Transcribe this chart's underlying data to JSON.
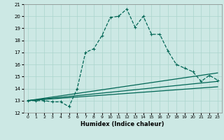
{
  "title": "",
  "xlabel": "Humidex (Indice chaleur)",
  "ylabel": "",
  "xlim": [
    -0.5,
    23.5
  ],
  "ylim": [
    12,
    21
  ],
  "yticks": [
    12,
    13,
    14,
    15,
    16,
    17,
    18,
    19,
    20,
    21
  ],
  "xticks": [
    0,
    1,
    2,
    3,
    4,
    5,
    6,
    7,
    8,
    9,
    10,
    11,
    12,
    13,
    14,
    15,
    16,
    17,
    18,
    19,
    20,
    21,
    22,
    23
  ],
  "bg_color": "#cce8e4",
  "grid_color": "#aad4cc",
  "line_color": "#006655",
  "line1_x": [
    0,
    1,
    2,
    3,
    4,
    5,
    6,
    7,
    8,
    9,
    10,
    11,
    12,
    13,
    14,
    15,
    16,
    17,
    18,
    19,
    20,
    21,
    22,
    23
  ],
  "line1_y": [
    13.0,
    13.0,
    13.0,
    12.9,
    12.9,
    12.5,
    14.0,
    17.0,
    17.3,
    18.4,
    19.9,
    20.0,
    20.6,
    19.1,
    20.0,
    18.5,
    18.5,
    17.1,
    16.0,
    15.7,
    15.4,
    14.6,
    15.1,
    14.7
  ],
  "line2_x": [
    0,
    23
  ],
  "line2_y": [
    13.0,
    15.3
  ],
  "line3_x": [
    0,
    23
  ],
  "line3_y": [
    13.0,
    14.6
  ],
  "line4_x": [
    0,
    23
  ],
  "line4_y": [
    13.0,
    14.15
  ]
}
